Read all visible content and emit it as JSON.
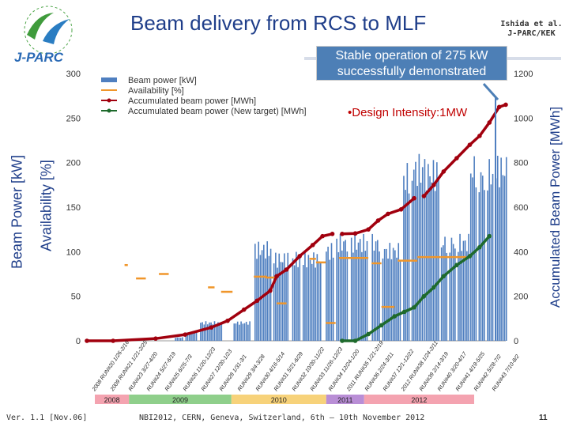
{
  "header": {
    "title": "Beam delivery from RCS to MLF",
    "affiliation_line1": "Ishida et al.",
    "affiliation_line2": "J-PARC/KEK",
    "logo_text": "J-PARC"
  },
  "callout": {
    "line1": "Stable operation of 275 kW",
    "line2": "successfully demonstrated"
  },
  "annotation": {
    "design": "•Design Intensity:1MW"
  },
  "footer": {
    "version": "Ver. 1.1 [Nov.06]",
    "conference": "NBI2012, CERN, Geneva, Switzerland, 6th – 10th November 2012",
    "page": "11"
  },
  "colors": {
    "bars": "#4f7fc0",
    "availability": "#f0962a",
    "accumulated": "#a1000e",
    "accumulated_new": "#1e6a2c",
    "title": "#1f3e8a"
  },
  "chart_data": {
    "type": "bar",
    "title": "Beam delivery from RCS to MLF",
    "ylabel_left": "Beam Power [kW]",
    "ylabel_left2": "Availability [%]",
    "ylabel_right": "Accumulated Beam Power [MWh]",
    "ylim_left": [
      0,
      300
    ],
    "yticks_left": [
      "0",
      "50",
      "100",
      "150",
      "200",
      "250",
      "300"
    ],
    "ylim_right": [
      0,
      1200
    ],
    "yticks_right": [
      "0",
      "200",
      "400",
      "600",
      "800",
      "1000",
      "1200"
    ],
    "legend": [
      "Beam power [kW]",
      "Availability [%]",
      "Accumulated beam power  [MWh]",
      "Accumulated beam power (New target) [MWh]"
    ],
    "x_range": [
      0,
      100
    ],
    "run_labels": [
      "2008 RUN#20 1/26-2/16",
      "2009 RUN#21 1/21-2/25",
      "RUN#23 3/27-4/20",
      "RUN#24 5/27-6/19",
      "RUN#25 6/25-7/3",
      "RUN#26 11/20-12/23",
      "RUN#27 12/30-1/23",
      "RUN#28 1/31-3/1",
      "RUN#29 3/4-3/28",
      "RUN#30 4/16-5/14",
      "RUN#31 5/21-6/29",
      "RUN#32 10/30-11/22",
      "RUN#33 11/26-12/23",
      "RUN#34 12/24-1/20",
      "2011 RUN#35 1/21-2/19",
      "RUN#36 2/24-3/11",
      "RUN#37 12/1-12/22",
      "2012 RUN#38 1/24-2/11",
      "RUN#39 2/14-3/19",
      "RUN#40 3/20-4/17",
      "RUN#41 4/19-5/25",
      "RUN#42 5/28-7/2",
      "RUN#43 7/10-8/2"
    ],
    "years": [
      {
        "label": "2008",
        "start": 0,
        "end": 9,
        "color": "#f4a3b0"
      },
      {
        "label": "2009",
        "start": 9,
        "end": 36,
        "color": "#8fcf8b"
      },
      {
        "label": "2010",
        "start": 36,
        "end": 61,
        "color": "#f7d27a"
      },
      {
        "label": "2011",
        "start": 61,
        "end": 71,
        "color": "#b98ed6"
      },
      {
        "label": "2012",
        "start": 71,
        "end": 100,
        "color": "#f4a3b0"
      }
    ],
    "power_segments": [
      {
        "start": 21,
        "end": 23,
        "value": 4
      },
      {
        "start": 23.5,
        "end": 26,
        "value": 10
      },
      {
        "start": 27,
        "end": 32,
        "value": 22
      },
      {
        "start": 35,
        "end": 39,
        "value": 22
      },
      {
        "start": 40,
        "end": 44,
        "value": 112
      },
      {
        "start": 44.5,
        "end": 48,
        "value": 100
      },
      {
        "start": 49,
        "end": 51,
        "value": 100
      },
      {
        "start": 51.5,
        "end": 56,
        "value": 100
      },
      {
        "start": 57,
        "end": 59,
        "value": 110
      },
      {
        "start": 59.5,
        "end": 62,
        "value": 120
      },
      {
        "start": 63,
        "end": 67,
        "value": 120
      },
      {
        "start": 68,
        "end": 70,
        "value": 120
      },
      {
        "start": 70.5,
        "end": 75,
        "value": 110
      },
      {
        "start": 75.5,
        "end": 77,
        "value": 200
      },
      {
        "start": 77.5,
        "end": 80,
        "value": 210
      },
      {
        "start": 80.5,
        "end": 84,
        "value": 205
      },
      {
        "start": 84.5,
        "end": 86,
        "value": 120
      },
      {
        "start": 86.5,
        "end": 88,
        "value": 120
      },
      {
        "start": 88.5,
        "end": 91,
        "value": 120
      },
      {
        "start": 91.5,
        "end": 93,
        "value": 210
      },
      {
        "start": 93.5,
        "end": 95,
        "value": 200
      },
      {
        "start": 95.5,
        "end": 97,
        "value": 205
      },
      {
        "start": 97.5,
        "end": 100,
        "value": 210
      }
    ],
    "availability": [
      {
        "x0": 11.5,
        "x1": 12.5,
        "value": 85
      },
      {
        "x0": 15,
        "x1": 18,
        "value": 70
      },
      {
        "x0": 22,
        "x1": 25,
        "value": 75
      },
      {
        "x0": 37,
        "x1": 39,
        "value": 60
      },
      {
        "x0": 41,
        "x1": 44.5,
        "value": 55
      },
      {
        "x0": 51,
        "x1": 55,
        "value": 72
      },
      {
        "x0": 54.5,
        "x1": 58,
        "value": 71
      },
      {
        "x0": 58,
        "x1": 61,
        "value": 42
      },
      {
        "x0": 68,
        "x1": 70,
        "value": 92
      },
      {
        "x0": 70,
        "x1": 73,
        "value": 88
      },
      {
        "x0": 73,
        "x1": 76,
        "value": 20
      },
      {
        "x0": 77,
        "x1": 86,
        "value": 93
      },
      {
        "x0": 87,
        "x1": 90,
        "value": 87
      },
      {
        "x0": 90,
        "x1": 94,
        "value": 38
      },
      {
        "x0": 95,
        "x1": 101,
        "value": 90
      },
      {
        "x0": 101,
        "x1": 108,
        "value": 94
      },
      {
        "x0": 108,
        "x1": 116,
        "value": 94
      }
    ],
    "accumulated": [
      {
        "x": 0,
        "y": 0
      },
      {
        "x": 8,
        "y": 0
      },
      {
        "x": 21,
        "y": 10
      },
      {
        "x": 30,
        "y": 28
      },
      {
        "x": 38,
        "y": 60
      },
      {
        "x": 43,
        "y": 90
      },
      {
        "x": 48,
        "y": 140
      },
      {
        "x": 52,
        "y": 180
      },
      {
        "x": 56,
        "y": 225
      },
      {
        "x": 58,
        "y": 290
      },
      {
        "x": 61,
        "y": 320
      },
      {
        "x": 65,
        "y": 380
      },
      {
        "x": 69,
        "y": 430
      },
      {
        "x": 72,
        "y": 470
      },
      {
        "x": 75,
        "y": 480
      }
    ],
    "accumulated_segment2": [
      {
        "x": 78,
        "y": 480
      },
      {
        "x": 82,
        "y": 482
      },
      {
        "x": 86,
        "y": 500
      },
      {
        "x": 89,
        "y": 540
      },
      {
        "x": 92,
        "y": 570
      },
      {
        "x": 96,
        "y": 590
      },
      {
        "x": 100,
        "y": 640
      }
    ],
    "accumulated_segment3": [
      {
        "x": 103,
        "y": 650
      },
      {
        "x": 106,
        "y": 700
      },
      {
        "x": 109,
        "y": 760
      },
      {
        "x": 113,
        "y": 820
      },
      {
        "x": 117,
        "y": 880
      },
      {
        "x": 120,
        "y": 920
      },
      {
        "x": 123,
        "y": 980
      },
      {
        "x": 126,
        "y": 1050
      },
      {
        "x": 128,
        "y": 1060
      }
    ],
    "accumulated_new": [
      {
        "x": 78,
        "y": 0
      },
      {
        "x": 82,
        "y": 0
      },
      {
        "x": 86,
        "y": 30
      },
      {
        "x": 90,
        "y": 70
      },
      {
        "x": 94,
        "y": 110
      },
      {
        "x": 97,
        "y": 130
      },
      {
        "x": 100,
        "y": 150
      },
      {
        "x": 103,
        "y": 200
      },
      {
        "x": 106,
        "y": 240
      },
      {
        "x": 109,
        "y": 290
      },
      {
        "x": 113,
        "y": 340
      },
      {
        "x": 117,
        "y": 380
      },
      {
        "x": 120,
        "y": 420
      },
      {
        "x": 123,
        "y": 470
      }
    ]
  }
}
